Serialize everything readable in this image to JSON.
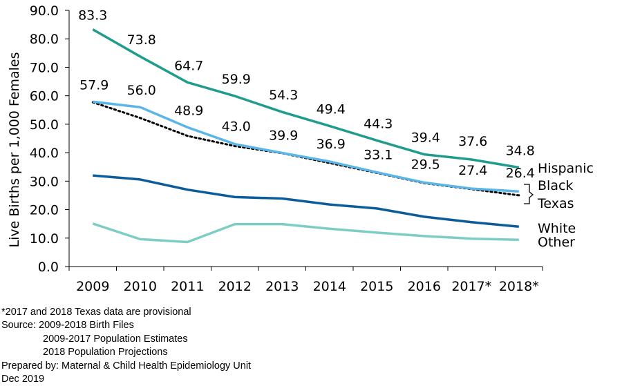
{
  "chart_data": {
    "type": "line",
    "title": "",
    "xlabel": "",
    "ylabel": "Live Births per 1,000 Females",
    "ylim": [
      0,
      90
    ],
    "yticks": [
      "0.0",
      "10.0",
      "20.0",
      "30.0",
      "40.0",
      "50.0",
      "60.0",
      "70.0",
      "80.0",
      "90.0"
    ],
    "categories": [
      "2009",
      "2010",
      "2011",
      "2012",
      "2013",
      "2014",
      "2015",
      "2016",
      "2017*",
      "2018*"
    ],
    "grid": false,
    "legend": "none (series labeled at right end of lines)",
    "series": [
      {
        "name": "Hispanic",
        "color": "#1f9c8c",
        "style": "solid",
        "values": [
          83.3,
          73.8,
          64.7,
          59.9,
          54.3,
          49.4,
          44.3,
          39.4,
          37.6,
          34.8
        ],
        "labels": [
          "83.3",
          "73.8",
          "64.7",
          "59.9",
          "54.3",
          "49.4",
          "44.3",
          "39.4",
          "37.6",
          "34.8"
        ]
      },
      {
        "name": "Black",
        "color": "#5bb5e6",
        "style": "solid",
        "values": [
          57.9,
          56.0,
          48.9,
          43.0,
          39.9,
          36.9,
          33.1,
          29.5,
          27.4,
          26.4
        ],
        "labels": [
          "57.9",
          "56.0",
          "48.9",
          "43.0",
          "39.9",
          "36.9",
          "33.1",
          "29.5",
          "27.4",
          "26.4"
        ]
      },
      {
        "name": "Texas",
        "color": "#000000",
        "style": "dotted",
        "values": [
          57.7,
          52.2,
          45.9,
          42.3,
          39.8,
          36.4,
          32.9,
          29.3,
          27.2,
          25.0
        ]
      },
      {
        "name": "White",
        "color": "#0b5c9a",
        "style": "solid",
        "values": [
          32.0,
          30.6,
          27.0,
          24.4,
          23.9,
          21.8,
          20.4,
          17.5,
          15.6,
          14.0
        ]
      },
      {
        "name": "Other",
        "color": "#7ccdc3",
        "style": "solid",
        "values": [
          15.1,
          9.6,
          8.6,
          14.9,
          14.9,
          13.3,
          11.9,
          10.7,
          9.8,
          9.4
        ]
      }
    ]
  },
  "notes": {
    "provisional": "*2017 and 2018 Texas data are provisional",
    "source": "Source: 2009-2018 Birth Files",
    "source_line2": "2009-2017 Population Estimates",
    "source_line3": "2018 Population Projections",
    "prepared_by": "Prepared by: Maternal & Child Health Epidemiology Unit",
    "date": "Dec 2019"
  }
}
